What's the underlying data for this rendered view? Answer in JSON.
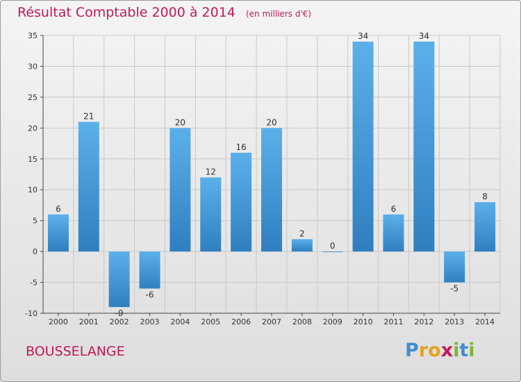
{
  "title": "Résultat Comptable 2000 à 2014",
  "unit": "(en milliers d'€)",
  "commune": "BOUSSELANGE",
  "logo": {
    "letters": [
      "P",
      "r",
      "o",
      "x",
      "i",
      "t",
      "i"
    ],
    "colors": [
      "#3f8fd2",
      "#e8a21a",
      "#e8a21a",
      "#c2185b",
      "#7ab534",
      "#3f8fd2",
      "#7ab534"
    ]
  },
  "chart_data": {
    "type": "bar",
    "categories": [
      "2000",
      "2001",
      "2002",
      "2003",
      "2004",
      "2005",
      "2006",
      "2007",
      "2008",
      "2009",
      "2010",
      "2011",
      "2012",
      "2013",
      "2014"
    ],
    "values": [
      6,
      21,
      -9,
      -6,
      20,
      12,
      16,
      20,
      2,
      0,
      34,
      6,
      34,
      -5,
      8
    ],
    "ylim": [
      -10,
      35
    ],
    "yticks": [
      -10,
      -5,
      0,
      5,
      10,
      15,
      20,
      25,
      30,
      35
    ],
    "grid": true,
    "bar_color": "#4a9fe0"
  }
}
